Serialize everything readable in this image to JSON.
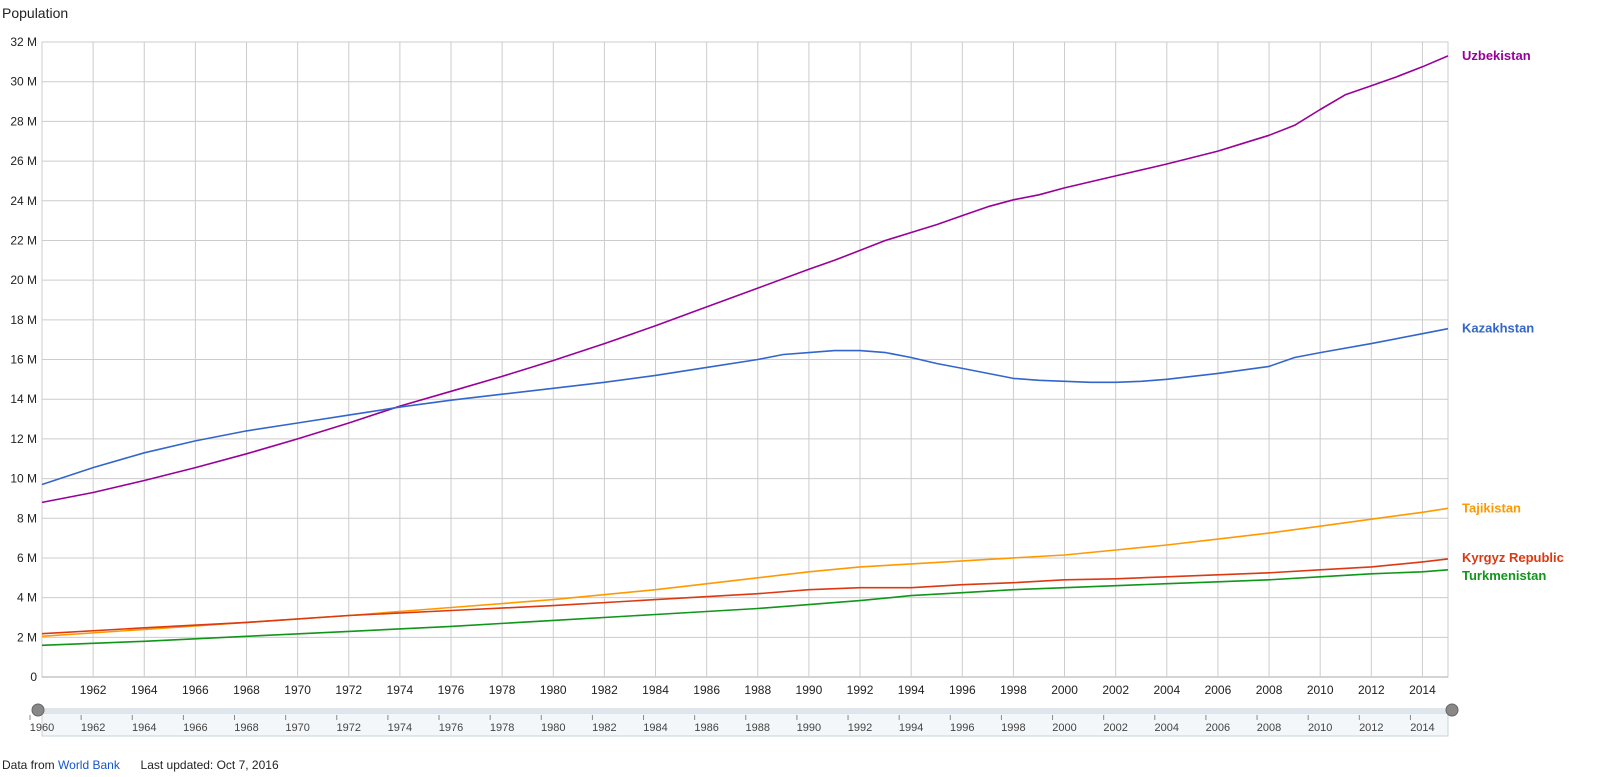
{
  "y_title": "Population",
  "footer": {
    "prefix": "Data from",
    "source_link": "World Bank",
    "updated": "Last updated: Oct 7, 2016"
  },
  "chart_data": {
    "type": "line",
    "ylabel": "Population",
    "ylim": [
      0,
      32000000
    ],
    "xlim": [
      1960,
      2015
    ],
    "grid": true,
    "legend_placement": "right, labels at series ends",
    "y_ticks": [
      "0",
      "2 M",
      "4 M",
      "6 M",
      "8 M",
      "10 M",
      "12 M",
      "14 M",
      "16 M",
      "18 M",
      "20 M",
      "22 M",
      "24 M",
      "26 M",
      "28 M",
      "30 M",
      "32 M"
    ],
    "x_ticks": [
      "1962",
      "1964",
      "1966",
      "1968",
      "1970",
      "1972",
      "1974",
      "1976",
      "1978",
      "1980",
      "1982",
      "1984",
      "1986",
      "1988",
      "1990",
      "1992",
      "1994",
      "1996",
      "1998",
      "2000",
      "2002",
      "2004",
      "2006",
      "2008",
      "2010",
      "2012",
      "2014"
    ],
    "range_ticks": [
      "1960",
      "1962",
      "1964",
      "1966",
      "1968",
      "1970",
      "1972",
      "1974",
      "1976",
      "1978",
      "1980",
      "1982",
      "1984",
      "1986",
      "1988",
      "1990",
      "1992",
      "1994",
      "1996",
      "1998",
      "2000",
      "2002",
      "2004",
      "2006",
      "2008",
      "2010",
      "2012",
      "2014"
    ],
    "series": [
      {
        "name": "Uzbekistan",
        "color": "#990099",
        "x": [
          1960,
          1962,
          1964,
          1966,
          1968,
          1970,
          1972,
          1974,
          1976,
          1978,
          1980,
          1982,
          1984,
          1986,
          1988,
          1990,
          1991,
          1992,
          1993,
          1994,
          1995,
          1996,
          1997,
          1998,
          1999,
          2000,
          2002,
          2004,
          2006,
          2007,
          2008,
          2009,
          2010,
          2011,
          2012,
          2013,
          2014,
          2015
        ],
        "y": [
          8800000,
          9300000,
          9900000,
          10550000,
          11250000,
          12000000,
          12800000,
          13650000,
          14400000,
          15150000,
          15950000,
          16800000,
          17700000,
          18650000,
          19600000,
          20550000,
          21000000,
          21500000,
          22000000,
          22400000,
          22800000,
          23250000,
          23700000,
          24050000,
          24300000,
          24650000,
          25250000,
          25850000,
          26500000,
          26900000,
          27300000,
          27800000,
          28600000,
          29350000,
          29800000,
          30250000,
          30750000,
          31300000
        ]
      },
      {
        "name": "Kazakhstan",
        "color": "#3366cc",
        "x": [
          1960,
          1962,
          1964,
          1966,
          1968,
          1970,
          1972,
          1974,
          1976,
          1978,
          1980,
          1982,
          1984,
          1986,
          1988,
          1989,
          1990,
          1991,
          1992,
          1993,
          1994,
          1995,
          1996,
          1997,
          1998,
          1999,
          2000,
          2001,
          2002,
          2003,
          2004,
          2006,
          2008,
          2009,
          2010,
          2012,
          2014,
          2015
        ],
        "y": [
          9700000,
          10550000,
          11300000,
          11900000,
          12400000,
          12800000,
          13200000,
          13600000,
          13950000,
          14250000,
          14550000,
          14850000,
          15200000,
          15600000,
          16000000,
          16250000,
          16350000,
          16450000,
          16450000,
          16350000,
          16100000,
          15800000,
          15550000,
          15300000,
          15050000,
          14950000,
          14900000,
          14850000,
          14850000,
          14900000,
          15000000,
          15300000,
          15650000,
          16100000,
          16350000,
          16800000,
          17300000,
          17550000
        ]
      },
      {
        "name": "Tajikistan",
        "color": "#ff9900",
        "x": [
          1960,
          1964,
          1968,
          1972,
          1976,
          1980,
          1984,
          1988,
          1990,
          1992,
          1994,
          1996,
          1998,
          2000,
          2002,
          2004,
          2006,
          2008,
          2010,
          2012,
          2014,
          2015
        ],
        "y": [
          2050000,
          2400000,
          2750000,
          3100000,
          3500000,
          3900000,
          4400000,
          5000000,
          5300000,
          5550000,
          5700000,
          5850000,
          6000000,
          6150000,
          6400000,
          6650000,
          6950000,
          7250000,
          7600000,
          7950000,
          8300000,
          8500000
        ]
      },
      {
        "name": "Kyrgyz Republic",
        "color": "#dc3912",
        "x": [
          1960,
          1964,
          1968,
          1972,
          1976,
          1980,
          1984,
          1988,
          1990,
          1992,
          1994,
          1996,
          1998,
          2000,
          2002,
          2004,
          2006,
          2008,
          2010,
          2012,
          2014,
          2015
        ],
        "y": [
          2180000,
          2480000,
          2750000,
          3100000,
          3350000,
          3600000,
          3900000,
          4200000,
          4400000,
          4500000,
          4500000,
          4650000,
          4750000,
          4900000,
          4950000,
          5050000,
          5150000,
          5250000,
          5400000,
          5550000,
          5800000,
          5950000
        ]
      },
      {
        "name": "Turkmenistan",
        "color": "#109618",
        "x": [
          1960,
          1964,
          1968,
          1972,
          1976,
          1980,
          1984,
          1988,
          1990,
          1992,
          1994,
          1996,
          1998,
          2000,
          2002,
          2004,
          2006,
          2008,
          2010,
          2012,
          2014,
          2015
        ],
        "y": [
          1600000,
          1800000,
          2050000,
          2300000,
          2550000,
          2850000,
          3150000,
          3450000,
          3650000,
          3850000,
          4100000,
          4250000,
          4400000,
          4500000,
          4600000,
          4700000,
          4800000,
          4900000,
          5050000,
          5200000,
          5300000,
          5400000
        ]
      }
    ]
  }
}
